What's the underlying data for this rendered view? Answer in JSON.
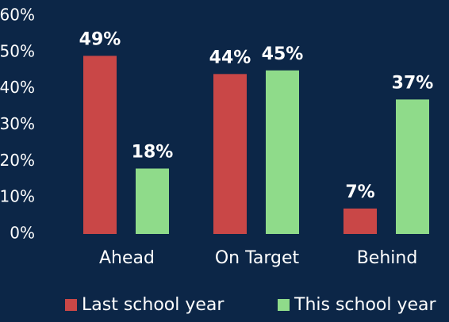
{
  "chart_data": {
    "type": "bar",
    "categories": [
      "Ahead",
      "On Target",
      "Behind"
    ],
    "series": [
      {
        "name": "Last school year",
        "color": "#c94747",
        "values": [
          49,
          44,
          7
        ],
        "value_labels": [
          "49%",
          "44%",
          "7%"
        ]
      },
      {
        "name": "This school year",
        "color": "#8fdb8a",
        "values": [
          18,
          45,
          37
        ],
        "value_labels": [
          "18%",
          "45%",
          "37%"
        ]
      }
    ],
    "ylim": [
      0,
      60
    ],
    "yticks": [
      {
        "value": 0,
        "label": "0%"
      },
      {
        "value": 10,
        "label": "10%"
      },
      {
        "value": 20,
        "label": "20%"
      },
      {
        "value": 30,
        "label": "30%"
      },
      {
        "value": 40,
        "label": "40%"
      },
      {
        "value": 50,
        "label": "50%"
      },
      {
        "value": 60,
        "label": "60%"
      }
    ],
    "grid": false
  }
}
